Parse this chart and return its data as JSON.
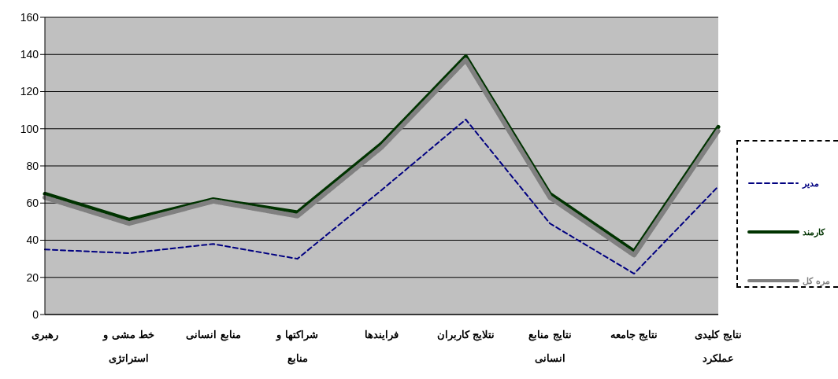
{
  "chart_data": {
    "type": "line",
    "categories": [
      "رهبری",
      "خط مشی و استراتژی",
      "منابع انسانی",
      "شراکتها و منابع",
      "فرایندها",
      "نتلایج کاربران",
      "نتایج منابع انسانی",
      "نتایج جامعه",
      "نتایج کلیدی عملکرد"
    ],
    "series": [
      {
        "name": "مدیر",
        "color": "#000080",
        "line_style": "dashed",
        "values": [
          35,
          33,
          38,
          30,
          67,
          105,
          49,
          22,
          69
        ]
      },
      {
        "name": "کارمند",
        "color": "#003300",
        "line_style": "solid",
        "values": [
          65,
          51,
          62,
          55,
          92,
          139,
          65,
          34,
          101
        ]
      },
      {
        "name": "مره کل",
        "color": "#808080",
        "line_style": "dotted",
        "values": [
          63,
          49,
          61,
          53,
          90,
          137,
          63,
          32,
          99
        ]
      }
    ],
    "ylim": [
      0,
      160
    ],
    "yticks": [
      0,
      20,
      40,
      60,
      80,
      100,
      120,
      140,
      160
    ],
    "grid": "y",
    "legend": "right",
    "marker": "none"
  }
}
